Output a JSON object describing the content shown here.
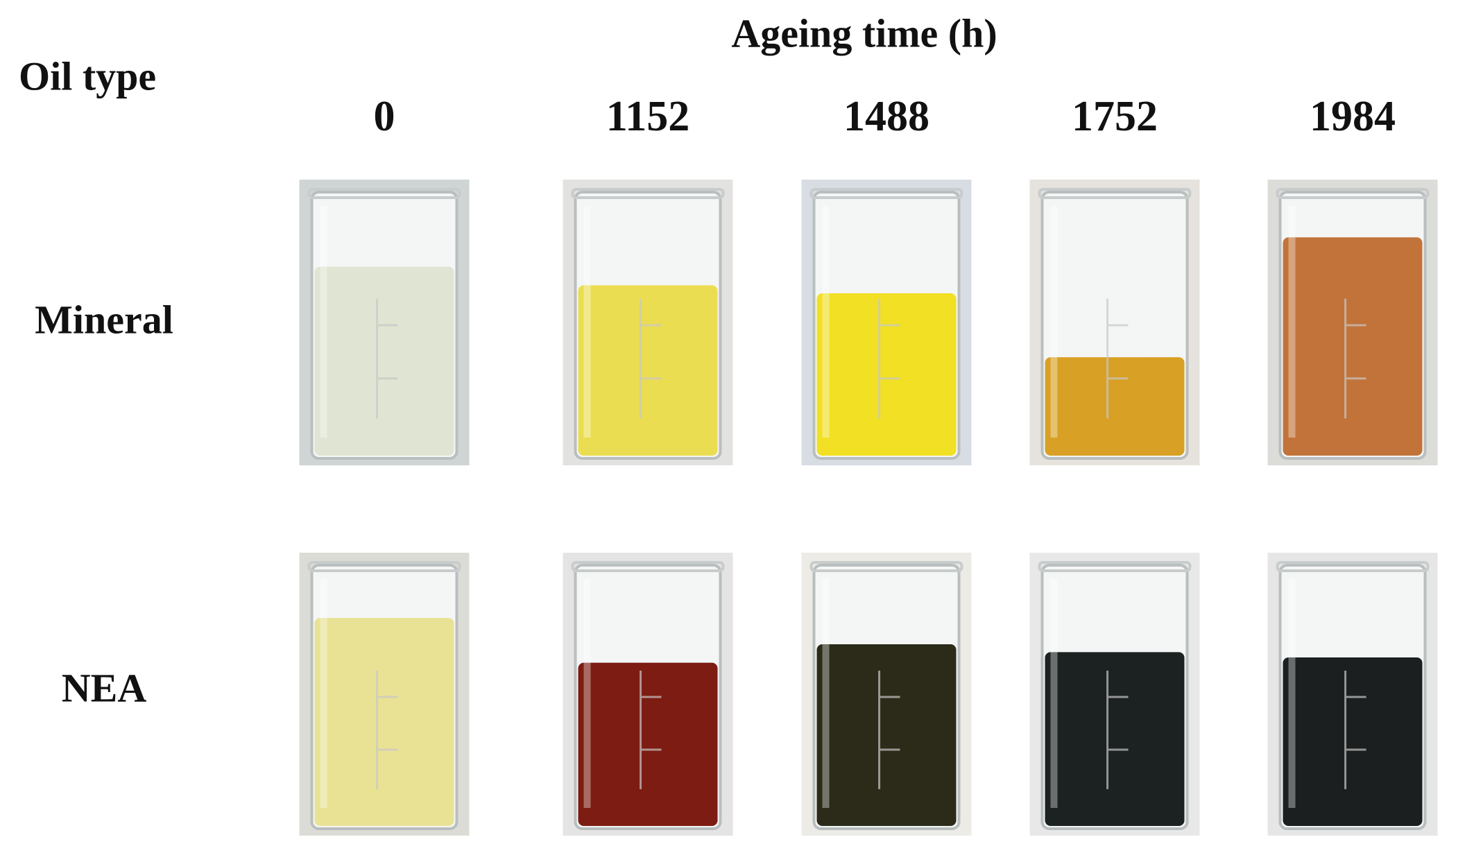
{
  "header": {
    "row_title": "Oil type",
    "column_title": "Ageing time (h)"
  },
  "columns": [
    "0",
    "1152",
    "1488",
    "1752",
    "1984"
  ],
  "rows": [
    "Mineral",
    "NEA"
  ]
}
